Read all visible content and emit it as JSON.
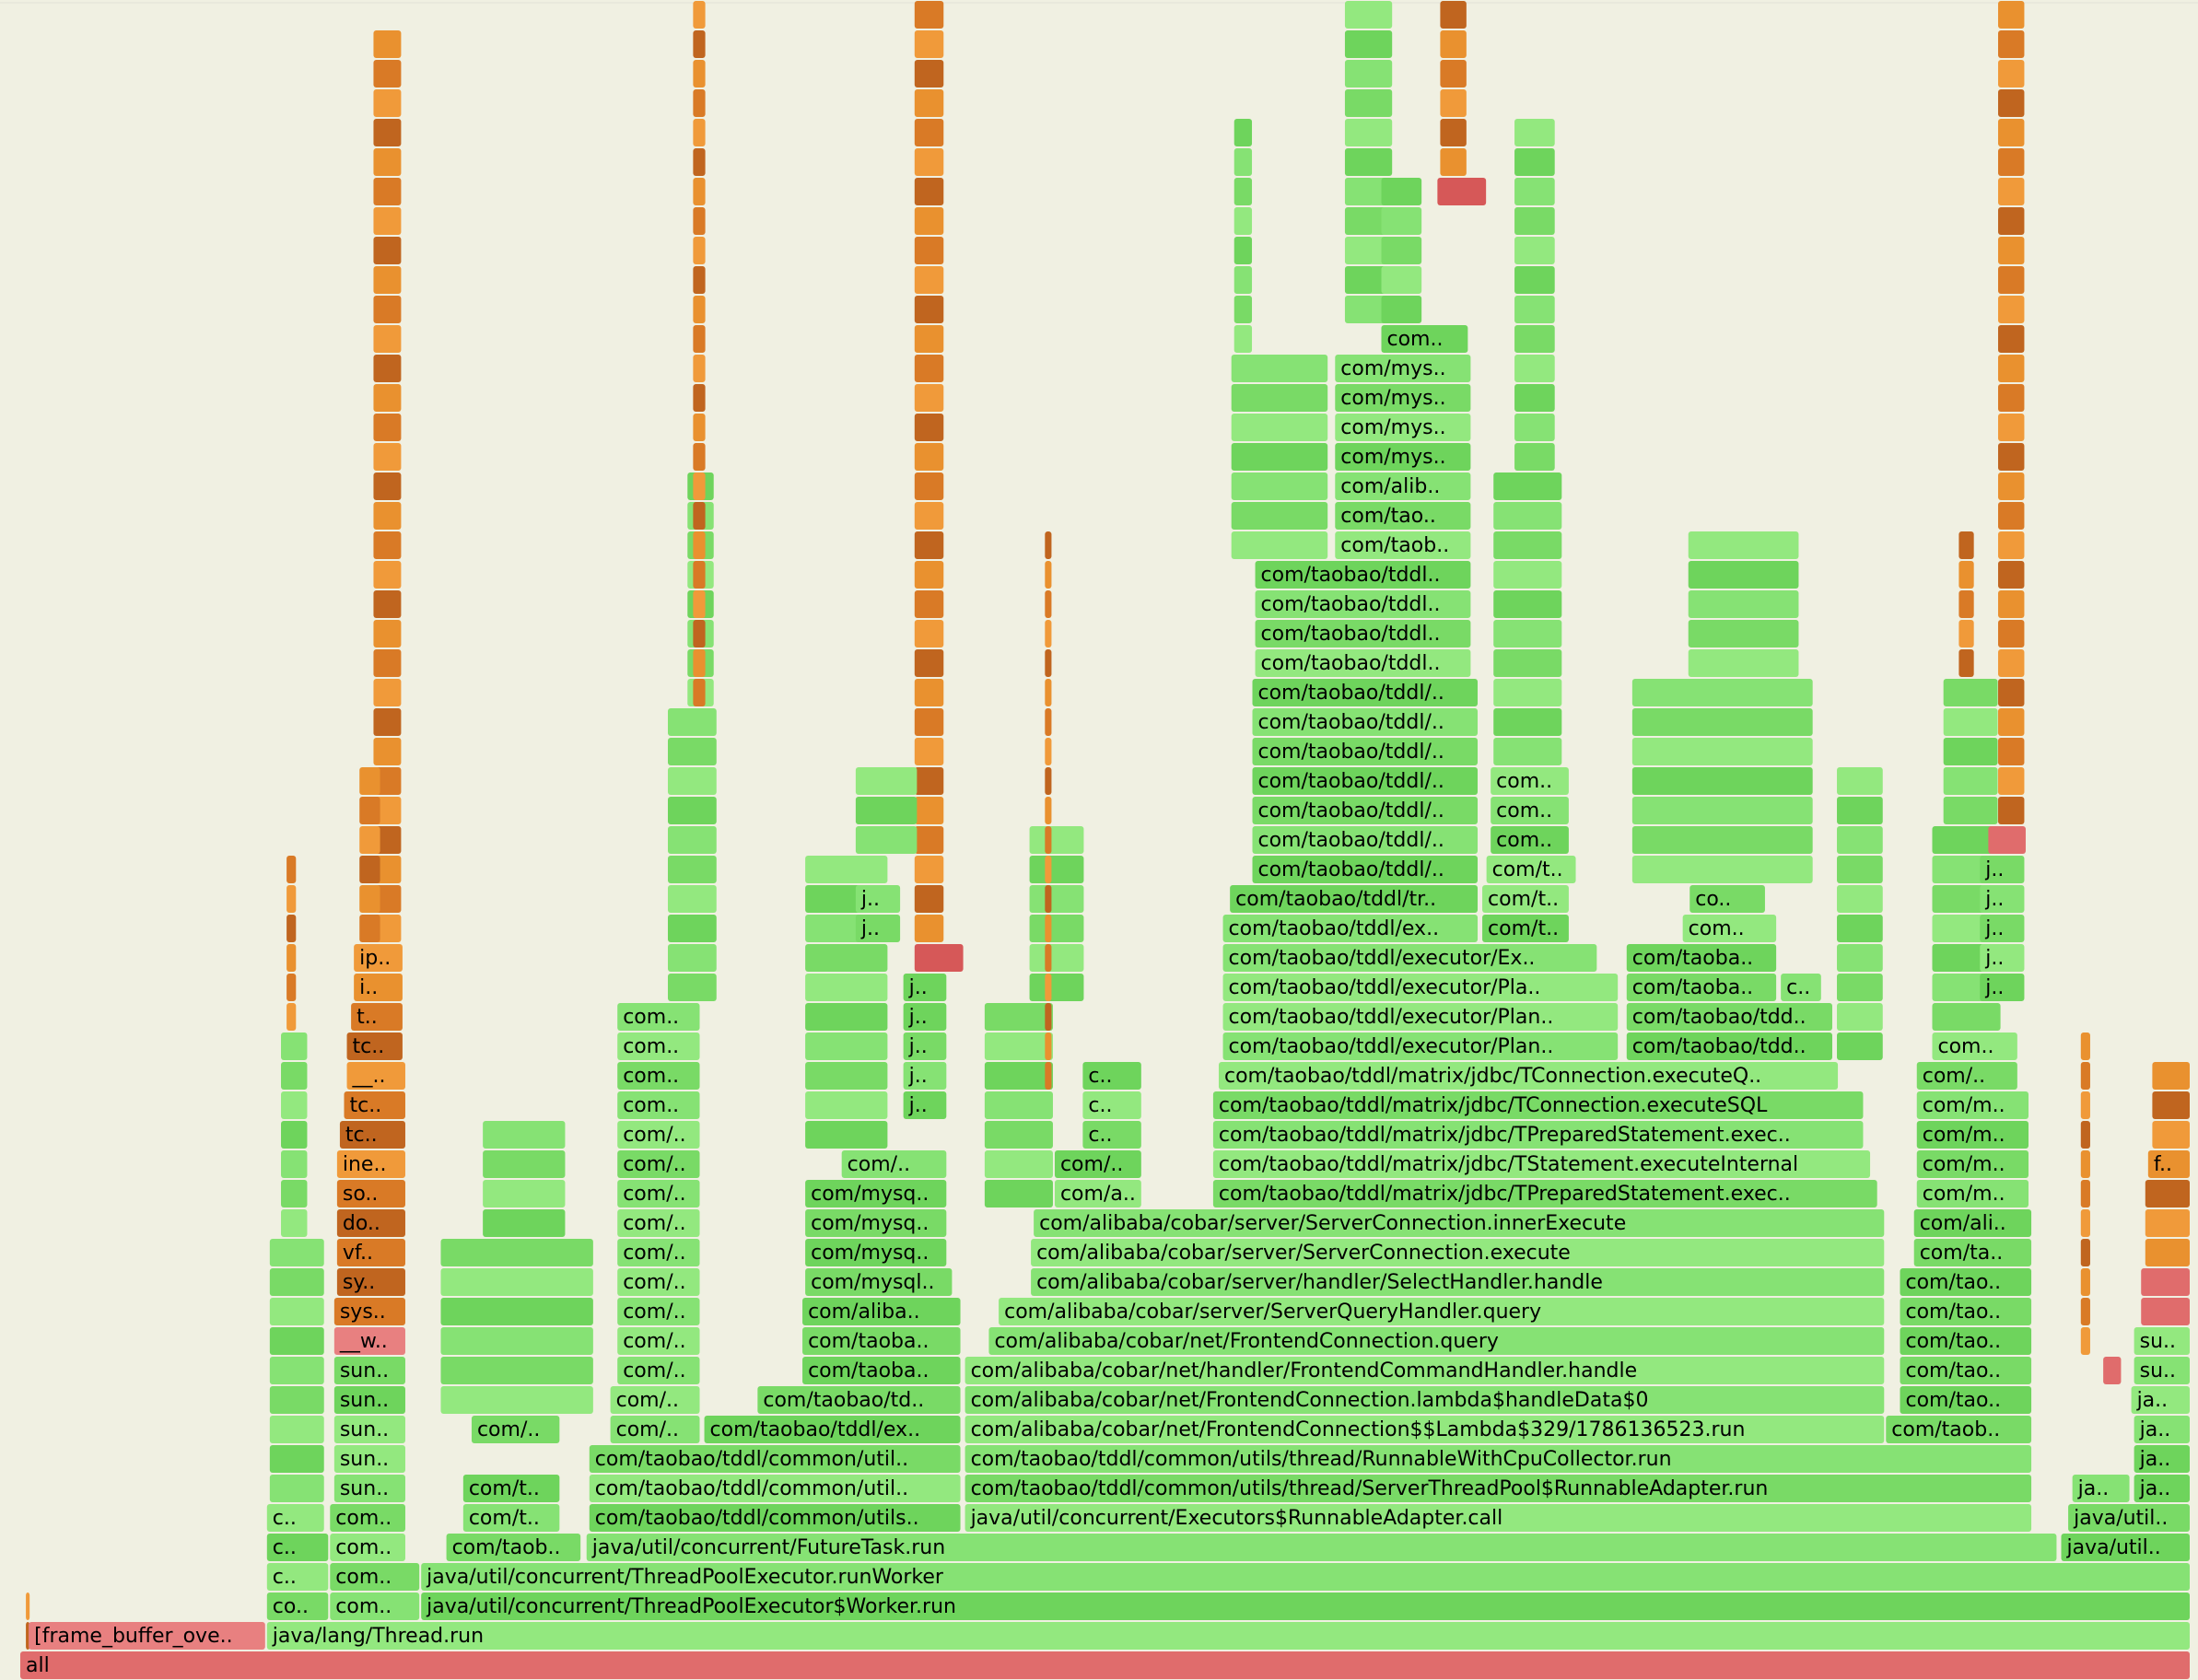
{
  "chart_data": {
    "type": "flame",
    "palette": {
      "g": [
        "#86e274",
        "#6ed45c",
        "#93e87f",
        "#79da66"
      ],
      "o": [
        "#e9912f",
        "#c0651f",
        "#f09a3a",
        "#d97a26"
      ],
      "r": [
        "#e06c6c",
        "#e88080",
        "#d65858"
      ]
    },
    "frames": [
      [
        "all",
        0,
        0,
        1549,
        "r"
      ],
      [
        "[frame_buffer_ove..",
        1,
        6,
        170,
        "r"
      ],
      [
        "java/lang/Thread.run",
        1,
        176,
        1373,
        "g"
      ],
      [
        "co..",
        2,
        176,
        45,
        "g"
      ],
      [
        "com..",
        2,
        221,
        65,
        "g"
      ],
      [
        "java/util/concurrent/ThreadPoolExecutor$Worker.run",
        2,
        286,
        1263,
        "g"
      ],
      [
        "c..",
        3,
        176,
        45,
        "g"
      ],
      [
        "com..",
        3,
        221,
        65,
        "g"
      ],
      [
        "java/util/concurrent/ThreadPoolExecutor.runWorker",
        3,
        286,
        1263,
        "g"
      ],
      [
        "c..",
        4,
        176,
        45,
        "g"
      ],
      [
        "com..",
        4,
        221,
        55,
        "g"
      ],
      [
        "com/taob..",
        4,
        304,
        97,
        "g"
      ],
      [
        "java/util/concurrent/FutureTask.run",
        4,
        404,
        1050,
        "g"
      ],
      [
        "java/util..",
        4,
        1456,
        93,
        "g"
      ],
      [
        "c..",
        5,
        176,
        42,
        "g"
      ],
      [
        "com..",
        5,
        221,
        55,
        "g"
      ],
      [
        "com/t..",
        5,
        316,
        70,
        "g"
      ],
      [
        "com/taobao/tddl/common/utils..",
        5,
        406,
        266,
        "g"
      ],
      [
        "java/util/concurrent/Executors$RunnableAdapter.call",
        5,
        674,
        762,
        "g"
      ],
      [
        "java/util..",
        5,
        1461,
        88,
        "g"
      ],
      [
        "sun..",
        6,
        224,
        52,
        "g"
      ],
      [
        "com/t..",
        6,
        316,
        70,
        "g"
      ],
      [
        "com/taobao/tddl/common/util..",
        6,
        406,
        266,
        "g"
      ],
      [
        "com/taobao/tddl/common/utils/thread/ServerThreadPool$RunnableAdapter.run",
        6,
        674,
        762,
        "g"
      ],
      [
        "ja..",
        6,
        1464,
        42,
        "g"
      ],
      [
        "ja..",
        6,
        1508,
        41,
        "g"
      ],
      [
        "sun..",
        7,
        224,
        52,
        "g"
      ],
      [
        "com/taobao/tddl/common/util..",
        7,
        406,
        266,
        "g"
      ],
      [
        "com/taobao/tddl/common/utils/thread/RunnableWithCpuCollector.run",
        7,
        674,
        762,
        "g"
      ],
      [
        "ja..",
        7,
        1508,
        41,
        "g"
      ],
      [
        "sun..",
        8,
        224,
        52,
        "g"
      ],
      [
        "com/..",
        8,
        322,
        64,
        "g"
      ],
      [
        "com/..",
        8,
        421,
        65,
        "g"
      ],
      [
        "com/taobao/tddl/ex..",
        8,
        488,
        184,
        "g"
      ],
      [
        "com/alibaba/cobar/net/FrontendConnection$$Lambda$329/1786136523.run",
        8,
        674,
        657,
        "g"
      ],
      [
        "com/taob..",
        8,
        1331,
        105,
        "g"
      ],
      [
        "ja..",
        8,
        1508,
        41,
        "g"
      ],
      [
        "sun..",
        9,
        224,
        52,
        "g"
      ],
      [
        "com/..",
        9,
        421,
        65,
        "g"
      ],
      [
        "com/taobao/td..",
        9,
        526,
        146,
        "g"
      ],
      [
        "com/alibaba/cobar/net/FrontendConnection.lambda$handleData$0",
        9,
        674,
        657,
        "g"
      ],
      [
        "com/tao..",
        9,
        1341,
        95,
        "g"
      ],
      [
        "ja..",
        9,
        1506,
        43,
        "g"
      ],
      [
        "sun..",
        10,
        224,
        52,
        "g"
      ],
      [
        "com/..",
        10,
        426,
        60,
        "g"
      ],
      [
        "com/taoba..",
        10,
        558,
        114,
        "g"
      ],
      [
        "com/alibaba/cobar/net/handler/FrontendCommandHandler.handle",
        10,
        674,
        657,
        "g"
      ],
      [
        "com/tao..",
        10,
        1341,
        95,
        "g"
      ],
      [
        "su..",
        10,
        1508,
        41,
        "g"
      ],
      [
        "__w..",
        11,
        224,
        52,
        "r"
      ],
      [
        "com/..",
        11,
        426,
        60,
        "g"
      ],
      [
        "com/taoba..",
        11,
        558,
        114,
        "g"
      ],
      [
        "com/alibaba/cobar/net/FrontendConnection.query",
        11,
        691,
        640,
        "g"
      ],
      [
        "com/tao..",
        11,
        1341,
        95,
        "g"
      ],
      [
        "su..",
        11,
        1508,
        41,
        "g"
      ],
      [
        "sys..",
        12,
        224,
        52,
        "o"
      ],
      [
        "com/..",
        12,
        426,
        60,
        "g"
      ],
      [
        "com/aliba..",
        12,
        558,
        114,
        "g"
      ],
      [
        "com/alibaba/cobar/server/ServerQueryHandler.query",
        12,
        698,
        633,
        "g"
      ],
      [
        "com/tao..",
        12,
        1341,
        95,
        "g"
      ],
      [
        null,
        12,
        1513,
        36,
        "r"
      ],
      [
        "sy..",
        13,
        226,
        50,
        "o"
      ],
      [
        "com/..",
        13,
        426,
        60,
        "g"
      ],
      [
        "com/mysql..",
        13,
        560,
        106,
        "g"
      ],
      [
        "com/alibaba/cobar/server/handler/SelectHandler.handle",
        13,
        721,
        610,
        "g"
      ],
      [
        "com/tao..",
        13,
        1341,
        95,
        "g"
      ],
      [
        null,
        13,
        1513,
        36,
        "r"
      ],
      [
        "vf..",
        14,
        226,
        50,
        "o"
      ],
      [
        "com/..",
        14,
        426,
        60,
        "g"
      ],
      [
        "com/mysq..",
        14,
        560,
        102,
        "g"
      ],
      [
        "com/alibaba/cobar/server/ServerConnection.execute",
        14,
        721,
        610,
        "g"
      ],
      [
        "com/ta..",
        14,
        1351,
        85,
        "g"
      ],
      [
        null,
        14,
        1516,
        33,
        "o"
      ],
      [
        "do..",
        15,
        226,
        50,
        "o"
      ],
      [
        "com/..",
        15,
        426,
        60,
        "g"
      ],
      [
        "com/mysq..",
        15,
        560,
        102,
        "g"
      ],
      [
        "com/alibaba/cobar/server/ServerConnection.innerExecute",
        15,
        723,
        608,
        "g"
      ],
      [
        "com/ali..",
        15,
        1351,
        85,
        "g"
      ],
      [
        null,
        15,
        1516,
        33,
        "o"
      ],
      [
        "so..",
        16,
        226,
        50,
        "o"
      ],
      [
        "com/..",
        16,
        426,
        60,
        "g"
      ],
      [
        "com/mysq..",
        16,
        560,
        102,
        "g"
      ],
      [
        "com/a..",
        16,
        738,
        63,
        "g"
      ],
      [
        "com/taobao/tddl/matrix/jdbc/TPreparedStatement.exec..",
        16,
        851,
        475,
        "g"
      ],
      [
        "com/m..",
        16,
        1353,
        81,
        "g"
      ],
      [
        null,
        16,
        1516,
        33,
        "o"
      ],
      [
        "ine..",
        17,
        226,
        50,
        "o"
      ],
      [
        "com/..",
        17,
        426,
        60,
        "g"
      ],
      [
        "com/..",
        17,
        586,
        76,
        "g"
      ],
      [
        "com/..",
        17,
        738,
        63,
        "g"
      ],
      [
        "com/taobao/tddl/matrix/jdbc/TStatement.executeInternal",
        17,
        851,
        470,
        "g"
      ],
      [
        "com/m..",
        17,
        1353,
        81,
        "g"
      ],
      [
        "f..",
        17,
        1518,
        31,
        "o"
      ],
      [
        "tc..",
        18,
        228,
        48,
        "o"
      ],
      [
        "com/..",
        18,
        426,
        60,
        "g"
      ],
      [
        "c..",
        18,
        758,
        43,
        "g"
      ],
      [
        "com/taobao/tddl/matrix/jdbc/TPreparedStatement.exec..",
        18,
        851,
        465,
        "g"
      ],
      [
        "com/m..",
        18,
        1353,
        81,
        "g"
      ],
      [
        null,
        18,
        1521,
        28,
        "o"
      ],
      [
        "tc..",
        19,
        231,
        45,
        "o"
      ],
      [
        "com..",
        19,
        426,
        60,
        "g"
      ],
      [
        "j..",
        19,
        630,
        32,
        "g"
      ],
      [
        "c..",
        19,
        758,
        43,
        "g"
      ],
      [
        "com/taobao/tddl/matrix/jdbc/TConnection.executeSQL",
        19,
        851,
        465,
        "g"
      ],
      [
        "com/m..",
        19,
        1353,
        81,
        "g"
      ],
      [
        null,
        19,
        1521,
        28,
        "o"
      ],
      [
        "__..",
        20,
        233,
        43,
        "o"
      ],
      [
        "com..",
        20,
        426,
        60,
        "g"
      ],
      [
        "j..",
        20,
        630,
        32,
        "g"
      ],
      [
        "c..",
        20,
        758,
        43,
        "g"
      ],
      [
        "com/taobao/tddl/matrix/jdbc/TConnection.executeQ..",
        20,
        855,
        443,
        "g"
      ],
      [
        "com/..",
        20,
        1353,
        73,
        "g"
      ],
      [
        null,
        20,
        1521,
        28,
        "o"
      ],
      [
        "tc..",
        21,
        233,
        41,
        "o"
      ],
      [
        "com..",
        21,
        426,
        60,
        "g"
      ],
      [
        "j..",
        21,
        630,
        32,
        "g"
      ],
      [
        "com/taobao/tddl/executor/Plan..",
        21,
        858,
        283,
        "g"
      ],
      [
        "com/taobao/tdd..",
        21,
        1146,
        148,
        "g"
      ],
      [
        "com..",
        21,
        1364,
        62,
        "g"
      ],
      [
        "t..",
        22,
        236,
        38,
        "o"
      ],
      [
        "com..",
        22,
        426,
        60,
        "g"
      ],
      [
        "j..",
        22,
        630,
        32,
        "g"
      ],
      [
        "com/taobao/tddl/executor/Plan..",
        22,
        858,
        283,
        "g"
      ],
      [
        "com/taobao/tdd..",
        22,
        1146,
        148,
        "g"
      ],
      [
        "i..",
        23,
        238,
        36,
        "o"
      ],
      [
        "j..",
        23,
        630,
        32,
        "g"
      ],
      [
        "com/taobao/tddl/executor/Pla..",
        23,
        858,
        283,
        "g"
      ],
      [
        "com/taoba..",
        23,
        1146,
        108,
        "g"
      ],
      [
        "c..",
        23,
        1256,
        30,
        "g"
      ],
      [
        "j..",
        23,
        1398,
        33,
        "g"
      ],
      [
        "ip..",
        24,
        238,
        36,
        "o"
      ],
      [
        null,
        24,
        638,
        36,
        "r"
      ],
      [
        "com/taobao/tddl/executor/Ex..",
        24,
        858,
        268,
        "g"
      ],
      [
        "com/taoba..",
        24,
        1146,
        108,
        "g"
      ],
      [
        "j..",
        24,
        1398,
        33,
        "g"
      ],
      [
        "j..",
        25,
        596,
        33,
        "g"
      ],
      [
        "com/taobao/tddl/ex..",
        25,
        858,
        183,
        "g"
      ],
      [
        "com/t..",
        25,
        1043,
        63,
        "g"
      ],
      [
        "com..",
        25,
        1186,
        68,
        "g"
      ],
      [
        "j..",
        25,
        1398,
        33,
        "g"
      ],
      [
        "j..",
        26,
        596,
        33,
        "g"
      ],
      [
        "com/taobao/tddl/tr..",
        26,
        863,
        178,
        "g"
      ],
      [
        "com/t..",
        26,
        1043,
        63,
        "g"
      ],
      [
        "co..",
        26,
        1191,
        55,
        "g"
      ],
      [
        "j..",
        26,
        1398,
        33,
        "g"
      ],
      [
        "com/taobao/tddl/..",
        27,
        879,
        162,
        "g"
      ],
      [
        "com/t..",
        27,
        1046,
        65,
        "g"
      ],
      [
        "j..",
        27,
        1398,
        33,
        "g"
      ],
      [
        "com/taobao/tddl/..",
        28,
        879,
        162,
        "g"
      ],
      [
        "com..",
        28,
        1049,
        57,
        "g"
      ],
      [
        null,
        28,
        1404,
        28,
        "r"
      ],
      [
        "com/taobao/tddl/..",
        29,
        879,
        162,
        "g"
      ],
      [
        "com..",
        29,
        1049,
        57,
        "g"
      ],
      [
        "com/taobao/tddl/..",
        30,
        879,
        162,
        "g"
      ],
      [
        "com..",
        30,
        1049,
        57,
        "g"
      ],
      [
        "com/taobao/tddl/..",
        31,
        879,
        162,
        "g"
      ],
      [
        "com/taobao/tddl/..",
        32,
        879,
        162,
        "g"
      ],
      [
        "com/taobao/tddl/..",
        33,
        879,
        162,
        "g"
      ],
      [
        "com/taobao/tddl..",
        34,
        881,
        155,
        "g"
      ],
      [
        "com/taobao/tddl..",
        35,
        881,
        155,
        "g"
      ],
      [
        "com/taobao/tddl..",
        36,
        881,
        155,
        "g"
      ],
      [
        "com/taobao/tddl..",
        37,
        881,
        155,
        "g"
      ],
      [
        "com/taob..",
        38,
        938,
        98,
        "g"
      ],
      [
        "com/tao..",
        39,
        938,
        98,
        "g"
      ],
      [
        "com/alib..",
        40,
        938,
        98,
        "g"
      ],
      [
        "com/mys..",
        41,
        938,
        98,
        "g"
      ],
      [
        "com/mys..",
        42,
        938,
        98,
        "g"
      ],
      [
        "com/mys..",
        43,
        938,
        98,
        "g"
      ],
      [
        "com/mys..",
        44,
        938,
        98,
        "g"
      ],
      [
        "com..",
        45,
        971,
        63,
        "g"
      ],
      [
        null,
        50,
        1011,
        36,
        "r"
      ],
      [
        null,
        10,
        1486,
        14,
        "r"
      ]
    ],
    "towers": [
      [
        4,
        4,
        1,
        2,
        "o"
      ],
      [
        252,
        21,
        25,
        55,
        "o"
      ],
      [
        242,
        16,
        25,
        30,
        "o"
      ],
      [
        638,
        22,
        25,
        56,
        "o"
      ],
      [
        1411,
        20,
        29,
        56,
        "o"
      ],
      [
        1013,
        20,
        51,
        56,
        "o"
      ],
      [
        945,
        35,
        46,
        56,
        "g"
      ],
      [
        971,
        30,
        46,
        50,
        "g"
      ],
      [
        462,
        36,
        23,
        32,
        "g"
      ],
      [
        476,
        20,
        33,
        40,
        "g"
      ],
      [
        480,
        10,
        33,
        56,
        "o"
      ],
      [
        560,
        60,
        18,
        27,
        "g"
      ],
      [
        596,
        45,
        28,
        30,
        "g"
      ],
      [
        1051,
        50,
        31,
        40,
        "g"
      ],
      [
        1066,
        30,
        41,
        52,
        "g"
      ],
      [
        1150,
        130,
        27,
        33,
        "g"
      ],
      [
        1190,
        80,
        34,
        38,
        "g"
      ],
      [
        1364,
        50,
        22,
        28,
        "g"
      ],
      [
        1372,
        40,
        29,
        33,
        "g"
      ],
      [
        1383,
        12,
        34,
        38,
        "o"
      ],
      [
        864,
        70,
        38,
        44,
        "g"
      ],
      [
        866,
        14,
        45,
        52,
        "g"
      ],
      [
        178,
        40,
        6,
        14,
        "g"
      ],
      [
        186,
        20,
        15,
        21,
        "g"
      ],
      [
        190,
        8,
        22,
        27,
        "o"
      ],
      [
        688,
        50,
        16,
        22,
        "g"
      ],
      [
        720,
        40,
        23,
        28,
        "g"
      ],
      [
        731,
        6,
        20,
        38,
        "o"
      ],
      [
        1296,
        34,
        21,
        30,
        "g"
      ],
      [
        300,
        110,
        9,
        14,
        "g"
      ],
      [
        330,
        60,
        15,
        18,
        "g"
      ],
      [
        1470,
        8,
        11,
        21,
        "o"
      ]
    ]
  }
}
